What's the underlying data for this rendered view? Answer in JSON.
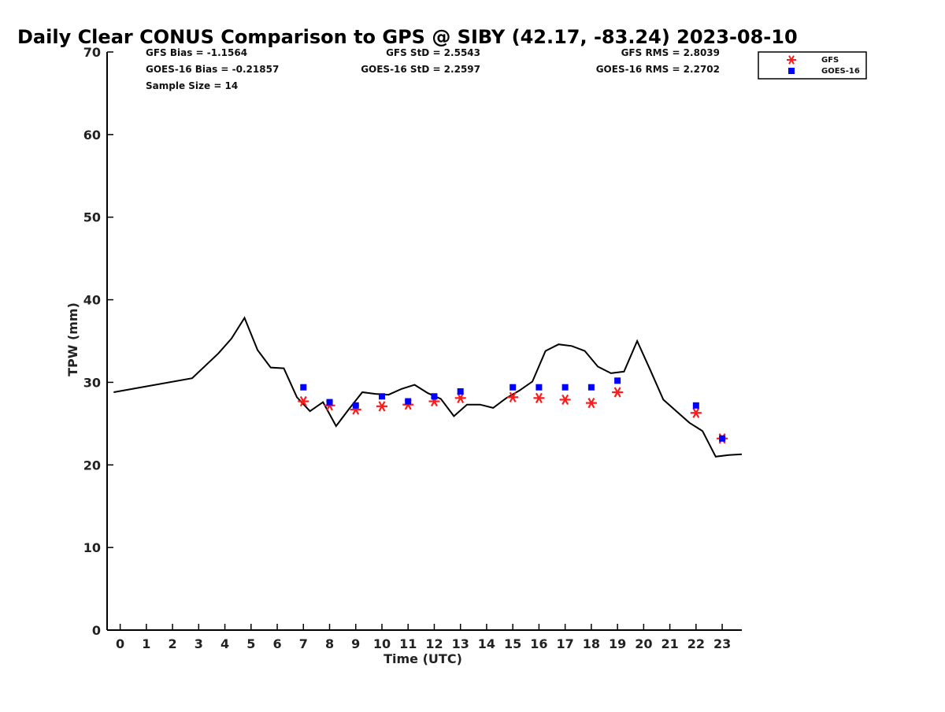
{
  "chart_data": {
    "type": "scatter",
    "title": "Daily Clear CONUS Comparison to GPS @ SIBY (42.17, -83.24) 2023-08-10",
    "xlabel": "Time (UTC)",
    "ylabel": "TPW (mm)",
    "xlim": [
      -0.5,
      23.75
    ],
    "ylim": [
      0,
      70
    ],
    "x_ticks": [
      0,
      1,
      2,
      3,
      4,
      5,
      6,
      7,
      8,
      9,
      10,
      11,
      12,
      13,
      14,
      15,
      16,
      17,
      18,
      19,
      20,
      21,
      22,
      23
    ],
    "y_ticks": [
      0,
      10,
      20,
      30,
      40,
      50,
      60,
      70
    ],
    "grid": false,
    "legend_position": "top-right",
    "stats": [
      "GFS Bias = -1.1564",
      "GFS StD = 2.5543",
      "GFS RMS = 2.8039",
      "GOES-16 Bias = -0.21857",
      "GOES-16 StD = 2.2597",
      "GOES-16 RMS = 2.2702",
      "Sample Size = 14"
    ],
    "series": [
      {
        "type": "line",
        "color": "#000000",
        "x": [
          -0.25,
          2.75,
          3.75,
          4.25,
          4.75,
          5.25,
          5.75,
          6.25,
          6.75,
          7.25,
          7.75,
          8.25,
          8.75,
          9.25,
          9.75,
          10.25,
          10.75,
          11.25,
          11.75,
          12.25,
          12.75,
          13.25,
          13.75,
          14.25,
          14.75,
          15.25,
          15.75,
          16.25,
          16.75,
          17.25,
          17.75,
          18.25,
          18.75,
          19.25,
          19.75,
          20.25,
          20.75,
          21.25,
          21.75,
          22.25,
          22.75,
          23.25,
          23.75
        ],
        "y": [
          28.8,
          30.5,
          33.5,
          35.3,
          37.8,
          33.9,
          31.8,
          31.7,
          28.2,
          26.5,
          27.6,
          24.7,
          26.8,
          28.8,
          28.6,
          28.5,
          29.2,
          29.7,
          28.7,
          28.0,
          25.9,
          27.3,
          27.3,
          26.9,
          28.1,
          29.0,
          30.1,
          33.8,
          34.6,
          34.4,
          33.8,
          31.9,
          31.1,
          31.3,
          35.0,
          31.5,
          27.9,
          26.5,
          25.1,
          24.1,
          21.0,
          21.2,
          21.3
        ]
      },
      {
        "name": "GFS",
        "type": "scatter",
        "marker": "asterisk",
        "color": "#ff1a1a",
        "x": [
          7,
          8,
          9,
          10,
          11,
          12,
          13,
          15,
          16,
          17,
          18,
          19,
          22,
          23
        ],
        "y": [
          27.7,
          27.2,
          26.7,
          27.1,
          27.3,
          27.7,
          28.1,
          28.2,
          28.1,
          27.9,
          27.5,
          28.8,
          26.3,
          23.2
        ]
      },
      {
        "name": "GOES-16",
        "type": "scatter",
        "marker": "square",
        "color": "#0000ff",
        "x": [
          7,
          8,
          9,
          10,
          11,
          12,
          13,
          15,
          16,
          17,
          18,
          19,
          22,
          23
        ],
        "y": [
          29.4,
          27.6,
          27.2,
          28.3,
          27.7,
          28.3,
          28.9,
          29.4,
          29.4,
          29.4,
          29.4,
          30.2,
          27.2,
          23.2
        ]
      }
    ]
  }
}
